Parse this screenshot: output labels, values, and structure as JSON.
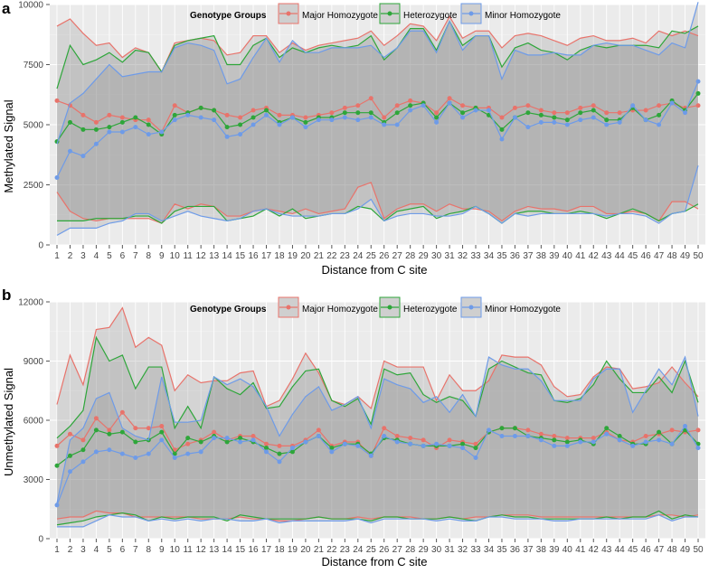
{
  "legend": {
    "title": "Genotype Groups",
    "groups": [
      {
        "name": "Major Homozygote",
        "color": "#e8736b"
      },
      {
        "name": "Heterozygote",
        "color": "#2ea63a"
      },
      {
        "name": "Minor Homozygote",
        "color": "#6e9be8"
      }
    ]
  },
  "chart_data": [
    {
      "type": "line",
      "panel": "a",
      "title": "",
      "xlabel": "Distance from C site",
      "ylabel": "Methylated Signal",
      "ylim": [
        0,
        10000
      ],
      "yticks": [
        0,
        2500,
        5000,
        7500,
        10000
      ],
      "x": [
        1,
        2,
        3,
        4,
        5,
        6,
        7,
        8,
        9,
        10,
        11,
        12,
        13,
        14,
        15,
        16,
        17,
        18,
        19,
        20,
        21,
        22,
        23,
        24,
        25,
        26,
        27,
        28,
        29,
        30,
        31,
        32,
        33,
        34,
        35,
        36,
        37,
        38,
        39,
        40,
        41,
        42,
        43,
        44,
        45,
        46,
        47,
        48,
        49,
        50
      ],
      "shaded_series": "Major Homozygote",
      "series": [
        {
          "name": "Major Homozygote",
          "upper": [
            9100,
            9400,
            8800,
            8300,
            8400,
            7800,
            8200,
            8000,
            7200,
            8400,
            8500,
            8600,
            8500,
            7900,
            8000,
            8700,
            8700,
            8000,
            8400,
            8100,
            8300,
            8400,
            8500,
            8600,
            8900,
            8300,
            8700,
            9200,
            9100,
            8500,
            9500,
            8600,
            8900,
            8900,
            8200,
            8700,
            8800,
            8700,
            8500,
            8300,
            8600,
            8700,
            8500,
            8500,
            8600,
            8400,
            8900,
            8700,
            8900,
            8700
          ],
          "mean": [
            6000,
            5800,
            5400,
            5100,
            5400,
            5300,
            5200,
            5200,
            4700,
            5800,
            5500,
            5700,
            5600,
            5400,
            5300,
            5600,
            5700,
            5400,
            5400,
            5300,
            5400,
            5500,
            5700,
            5800,
            6100,
            5300,
            5800,
            6000,
            5900,
            5500,
            6100,
            5800,
            5700,
            5700,
            5300,
            5700,
            5800,
            5600,
            5500,
            5500,
            5700,
            5800,
            5500,
            5500,
            5600,
            5600,
            5800,
            5900,
            5700,
            5800
          ],
          "lower": [
            2200,
            1400,
            1100,
            1000,
            1100,
            1100,
            1100,
            1100,
            900,
            1700,
            1500,
            1700,
            1600,
            1200,
            1200,
            1400,
            1500,
            1400,
            1300,
            1500,
            1300,
            1400,
            1500,
            2400,
            2600,
            1100,
            1500,
            1700,
            1700,
            1400,
            1700,
            1500,
            1500,
            1400,
            1000,
            1400,
            1600,
            1500,
            1500,
            1400,
            1600,
            1600,
            1300,
            1300,
            1400,
            1300,
            1000,
            1800,
            1800,
            1500
          ]
        },
        {
          "name": "Heterozygote",
          "upper": [
            6500,
            8300,
            7500,
            7700,
            8000,
            7600,
            8100,
            8000,
            7200,
            8300,
            8500,
            8600,
            8700,
            7500,
            7500,
            8300,
            8600,
            7800,
            8200,
            8000,
            8200,
            8300,
            8200,
            8300,
            8700,
            7700,
            8200,
            9000,
            9000,
            8100,
            9300,
            8300,
            8700,
            8700,
            7400,
            8200,
            8400,
            8100,
            8000,
            7700,
            8100,
            8300,
            8200,
            8300,
            8300,
            8300,
            8200,
            8900,
            8800,
            9100
          ],
          "mean": [
            4300,
            5100,
            4800,
            4800,
            4900,
            5100,
            5300,
            5000,
            4600,
            5400,
            5500,
            5700,
            5600,
            4900,
            5000,
            5300,
            5600,
            5100,
            5300,
            5100,
            5300,
            5300,
            5500,
            5500,
            5500,
            5100,
            5500,
            5800,
            5900,
            5300,
            5900,
            5500,
            5700,
            5400,
            4800,
            5300,
            5500,
            5400,
            5300,
            5200,
            5500,
            5600,
            5200,
            5200,
            5700,
            5200,
            5400,
            6000,
            5600,
            6300
          ],
          "lower": [
            1000,
            1000,
            1000,
            1100,
            1100,
            1100,
            1200,
            1200,
            900,
            1400,
            1600,
            1600,
            1600,
            1000,
            1100,
            1200,
            1500,
            1200,
            1500,
            1100,
            1200,
            1300,
            1300,
            1600,
            1500,
            1000,
            1400,
            1500,
            1600,
            1100,
            1300,
            1400,
            1600,
            1300,
            900,
            1300,
            1400,
            1400,
            1300,
            1300,
            1400,
            1300,
            1100,
            1300,
            1500,
            1300,
            1000,
            1300,
            1400,
            1700
          ]
        },
        {
          "name": "Minor Homozygote",
          "upper": [
            4200,
            5900,
            6300,
            6900,
            7500,
            7000,
            7100,
            7200,
            7200,
            8200,
            8400,
            8300,
            8100,
            6700,
            6900,
            7800,
            8600,
            7600,
            8500,
            8000,
            8000,
            8200,
            8200,
            8200,
            8300,
            7800,
            8200,
            8900,
            8900,
            8000,
            9300,
            8100,
            8700,
            8700,
            6900,
            8100,
            7900,
            7900,
            8000,
            7900,
            7900,
            8300,
            8400,
            8300,
            8300,
            8100,
            7900,
            8400,
            8200,
            10100
          ],
          "mean": [
            2800,
            3900,
            3700,
            4200,
            4700,
            4700,
            4900,
            4600,
            4700,
            5200,
            5400,
            5300,
            5200,
            4500,
            4600,
            5000,
            5400,
            5000,
            5300,
            4900,
            5200,
            5200,
            5300,
            5200,
            5300,
            5000,
            5000,
            5600,
            5800,
            5100,
            5900,
            5300,
            5600,
            5600,
            4400,
            5300,
            4900,
            5100,
            5100,
            5000,
            5200,
            5300,
            5000,
            5100,
            5800,
            5200,
            5000,
            5900,
            5500,
            6800
          ],
          "lower": [
            400,
            700,
            700,
            700,
            900,
            1000,
            1300,
            1300,
            1000,
            1200,
            1400,
            1200,
            1100,
            1000,
            1100,
            1400,
            1500,
            1300,
            1200,
            1200,
            1200,
            1300,
            1300,
            1500,
            1900,
            1000,
            1200,
            1300,
            1300,
            1200,
            1200,
            1300,
            1600,
            1300,
            900,
            1300,
            1200,
            1300,
            1300,
            1300,
            1300,
            1300,
            1200,
            1300,
            1300,
            1200,
            900,
            1300,
            1400,
            3300
          ]
        }
      ]
    },
    {
      "type": "line",
      "panel": "b",
      "title": "",
      "xlabel": "Distance from C site",
      "ylabel": "Unmethylated Signal",
      "ylim": [
        0,
        12000
      ],
      "yticks": [
        0,
        3000,
        6000,
        9000,
        12000
      ],
      "x": [
        1,
        2,
        3,
        4,
        5,
        6,
        7,
        8,
        9,
        10,
        11,
        12,
        13,
        14,
        15,
        16,
        17,
        18,
        19,
        20,
        21,
        22,
        23,
        24,
        25,
        26,
        27,
        28,
        29,
        30,
        31,
        32,
        33,
        34,
        35,
        36,
        37,
        38,
        39,
        40,
        41,
        42,
        43,
        44,
        45,
        46,
        47,
        48,
        49,
        50
      ],
      "shaded_series": "Major Homozygote",
      "series": [
        {
          "name": "Major Homozygote",
          "upper": [
            6800,
            9300,
            7800,
            10600,
            10700,
            11700,
            9700,
            10200,
            9800,
            7500,
            8300,
            7900,
            8000,
            8000,
            8400,
            8500,
            6700,
            7000,
            8100,
            9400,
            8400,
            7000,
            6800,
            7200,
            6600,
            9000,
            8700,
            8700,
            8700,
            7000,
            8300,
            7500,
            7500,
            8000,
            9300,
            9200,
            9200,
            8800,
            7700,
            7200,
            7300,
            8200,
            8700,
            8600,
            7600,
            7700,
            7900,
            8700,
            7900,
            7200
          ],
          "mean": [
            4700,
            5300,
            5000,
            6100,
            5500,
            6400,
            5600,
            5600,
            5700,
            4500,
            4800,
            5000,
            5400,
            5000,
            5200,
            5200,
            4800,
            4700,
            4700,
            5000,
            5500,
            4700,
            4900,
            4900,
            4200,
            5600,
            5200,
            5100,
            5000,
            4600,
            5000,
            4900,
            4800,
            5400,
            5600,
            5600,
            5500,
            5300,
            5200,
            5100,
            5100,
            5100,
            5400,
            5000,
            4900,
            5200,
            5300,
            5500,
            5400,
            5500
          ],
          "lower": [
            1000,
            1100,
            1100,
            1400,
            1300,
            1300,
            1100,
            1100,
            1100,
            1100,
            1100,
            1000,
            1000,
            1000,
            1100,
            1000,
            1000,
            900,
            900,
            1000,
            1100,
            1000,
            1000,
            1100,
            1000,
            1100,
            1100,
            1100,
            1000,
            1000,
            1100,
            1000,
            1100,
            1100,
            1200,
            1200,
            1200,
            1100,
            1100,
            1100,
            1100,
            1100,
            1100,
            1100,
            1100,
            1100,
            1200,
            1200,
            1100,
            1200
          ]
        },
        {
          "name": "Heterozygote",
          "upper": [
            5100,
            5700,
            6500,
            10200,
            9000,
            9300,
            7600,
            8700,
            8700,
            5600,
            6700,
            5600,
            8200,
            7600,
            7300,
            7900,
            6600,
            6700,
            7700,
            8500,
            8600,
            7000,
            6700,
            7100,
            5800,
            8600,
            8300,
            8400,
            7300,
            6900,
            7200,
            7000,
            6200,
            8600,
            9000,
            8700,
            8400,
            8300,
            7000,
            6900,
            7100,
            7800,
            9000,
            8100,
            7400,
            7400,
            8200,
            7400,
            9000,
            6900
          ],
          "mean": [
            3700,
            4200,
            4500,
            5500,
            5300,
            5400,
            4900,
            5000,
            5400,
            4300,
            5100,
            4900,
            5200,
            4900,
            5100,
            4900,
            4600,
            4300,
            4400,
            4900,
            5200,
            4600,
            4800,
            4800,
            4300,
            5100,
            5000,
            4800,
            4700,
            4700,
            4700,
            4800,
            4600,
            5400,
            5600,
            5600,
            5200,
            5100,
            5000,
            4900,
            5000,
            4800,
            5600,
            5200,
            4800,
            4800,
            5400,
            4800,
            5500,
            4800
          ],
          "lower": [
            700,
            800,
            900,
            1100,
            1200,
            1300,
            1200,
            900,
            1100,
            1000,
            1100,
            1100,
            1100,
            900,
            1200,
            1100,
            1000,
            1000,
            1000,
            1000,
            1100,
            1000,
            1000,
            1000,
            900,
            1100,
            1100,
            1000,
            1000,
            1000,
            1100,
            1000,
            900,
            1100,
            1200,
            1100,
            1100,
            1000,
            1000,
            1000,
            1000,
            1000,
            1100,
            1000,
            1100,
            1100,
            1400,
            1000,
            1200,
            1100
          ]
        },
        {
          "name": "Minor Homozygote",
          "upper": [
            1800,
            5000,
            5600,
            7100,
            7400,
            5600,
            5200,
            5000,
            8200,
            5900,
            5900,
            6000,
            8200,
            7800,
            8100,
            7700,
            6700,
            5200,
            6300,
            7200,
            7700,
            6500,
            6800,
            7200,
            5600,
            8100,
            7800,
            7600,
            6900,
            7200,
            6400,
            7300,
            6200,
            9200,
            8800,
            8600,
            8600,
            8000,
            7000,
            7000,
            7000,
            8100,
            8600,
            8600,
            6400,
            7500,
            8600,
            7800,
            9200,
            6200
          ],
          "mean": [
            1700,
            3400,
            3900,
            4400,
            4500,
            4300,
            4100,
            4300,
            5000,
            4100,
            4300,
            4400,
            5100,
            5100,
            4900,
            5000,
            4400,
            3900,
            4600,
            4900,
            5200,
            4400,
            4800,
            4700,
            4200,
            5200,
            4900,
            4800,
            4700,
            4800,
            4700,
            4600,
            4100,
            5500,
            5200,
            5200,
            5200,
            5000,
            4700,
            4700,
            4900,
            4900,
            5300,
            5000,
            4700,
            4900,
            5000,
            4800,
            5700,
            4600
          ],
          "lower": [
            600,
            600,
            600,
            900,
            1200,
            1100,
            1100,
            900,
            1000,
            900,
            1000,
            900,
            1000,
            1000,
            900,
            900,
            1000,
            800,
            900,
            900,
            900,
            900,
            900,
            1000,
            800,
            1000,
            1000,
            1000,
            1000,
            900,
            1000,
            900,
            900,
            1100,
            1100,
            1000,
            1000,
            1000,
            900,
            900,
            1000,
            1000,
            1000,
            1000,
            1000,
            1000,
            1200,
            900,
            1100,
            1100
          ]
        }
      ]
    }
  ]
}
